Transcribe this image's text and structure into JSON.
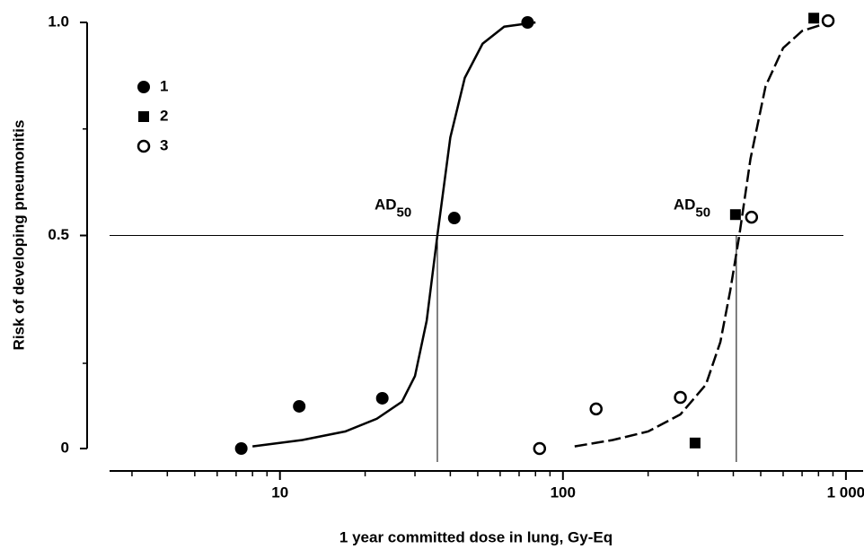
{
  "chart_data": {
    "type": "scatter",
    "x_label": "1 year committed dose in lung, Gy-Eq",
    "y_label": "Risk of developing pneumonitis",
    "xscale": "log",
    "xlim": [
      2.5,
      1150
    ],
    "ylim": [
      0,
      1
    ],
    "xticks": [
      10,
      100,
      {
        "value": 1000,
        "label": "1 000"
      }
    ],
    "xminorticks": [
      3,
      4,
      5,
      6,
      7,
      8,
      9,
      20,
      30,
      40,
      50,
      60,
      70,
      80,
      90,
      200,
      300,
      400,
      500,
      600,
      700,
      800,
      900
    ],
    "yticks": [
      0,
      0.5,
      {
        "value": 1,
        "label": "1.0"
      }
    ],
    "yminorticks": [
      0.2,
      0.75
    ],
    "legend": "upper left",
    "series": [
      {
        "name": "1",
        "marker": "filled-circle",
        "color": "#000000",
        "x": [
          7.3,
          11.7,
          23,
          41.3,
          75
        ],
        "values": [
          0,
          0.099,
          0.118,
          0.541,
          1.0
        ]
      },
      {
        "name": "2",
        "marker": "filled-square",
        "color": "#000000",
        "x": [
          293,
          407,
          770
        ],
        "values": [
          0.013,
          0.549,
          1.01
        ]
      },
      {
        "name": "3",
        "marker": "open-circle",
        "color": "#000000",
        "x": [
          82.7,
          131,
          260,
          464,
          865
        ],
        "values": [
          0,
          0.093,
          0.12,
          0.543,
          1.004
        ]
      }
    ],
    "curves": [
      {
        "style": "solid",
        "x": [
          8,
          12,
          17,
          22,
          27,
          30,
          33,
          36,
          40,
          45,
          52,
          62,
          80
        ],
        "values": [
          0.005,
          0.02,
          0.04,
          0.07,
          0.11,
          0.17,
          0.3,
          0.5,
          0.73,
          0.87,
          0.95,
          0.99,
          1.0
        ]
      },
      {
        "style": "dashed",
        "x": [
          110,
          150,
          200,
          260,
          320,
          360,
          390,
          420,
          460,
          520,
          600,
          700,
          870
        ],
        "values": [
          0.005,
          0.02,
          0.04,
          0.08,
          0.15,
          0.25,
          0.37,
          0.5,
          0.68,
          0.85,
          0.94,
          0.98,
          1.0
        ]
      }
    ],
    "hline": {
      "y": 0.5,
      "x": [
        2.5,
        980
      ]
    },
    "annotations": [
      {
        "label": "AD",
        "subscript": "50",
        "x": 36,
        "y": 0.5
      },
      {
        "label": "AD",
        "subscript": "50",
        "x": 410,
        "y": 0.5
      }
    ]
  }
}
